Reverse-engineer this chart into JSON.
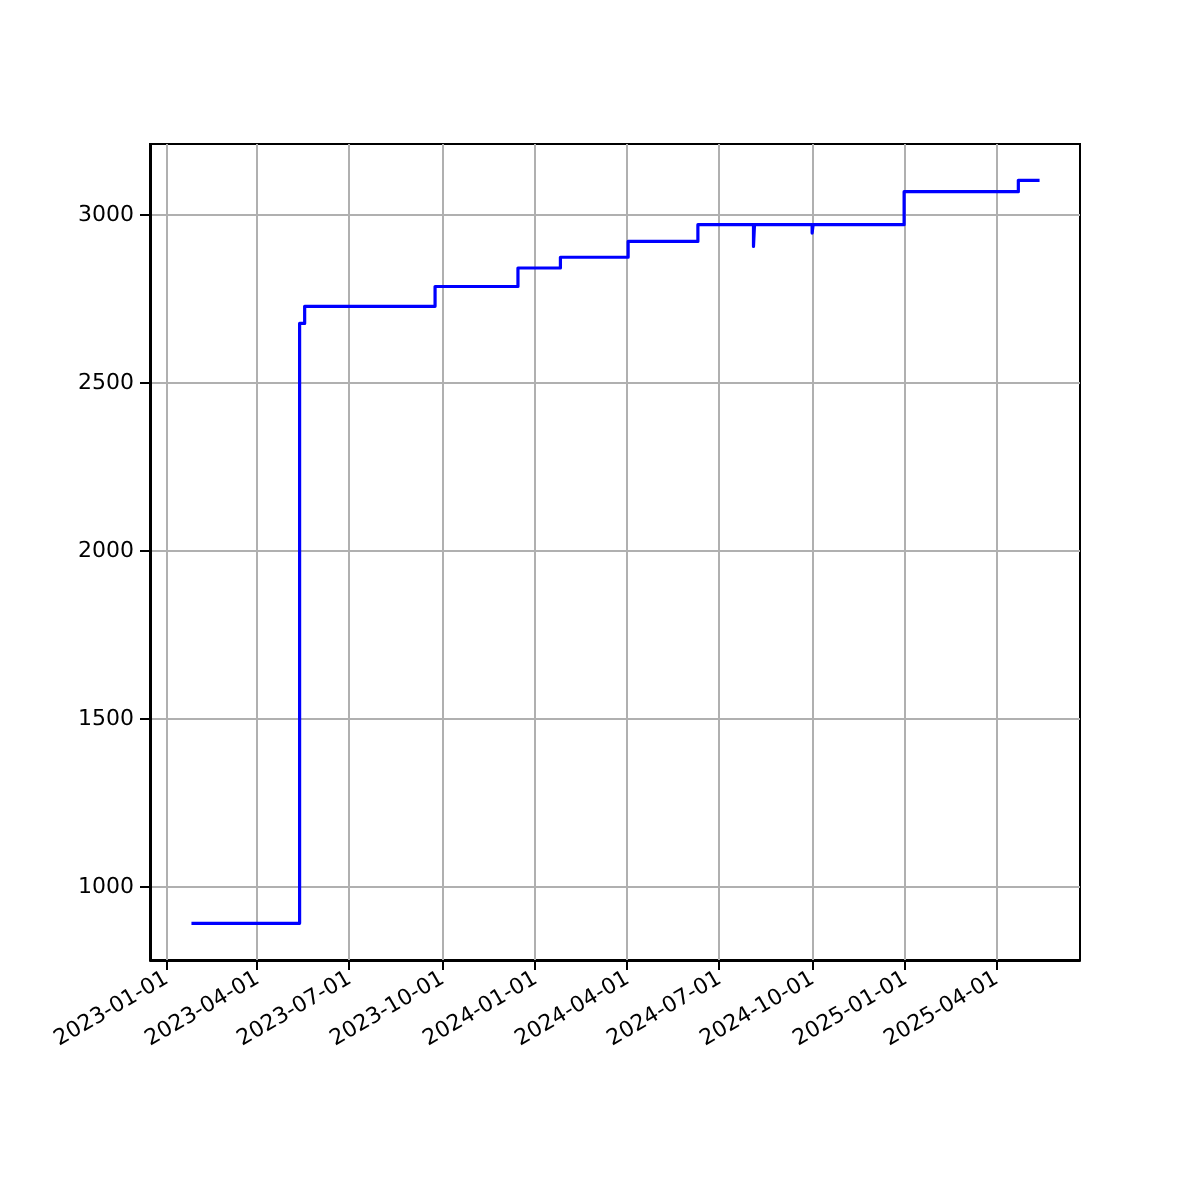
{
  "chart_data": {
    "type": "step",
    "x": [
      "2023-01-26",
      "2023-05-13",
      "2023-05-18",
      "2023-09-24",
      "2023-12-15",
      "2024-01-26",
      "2024-04-02",
      "2024-06-10",
      "2024-08-04",
      "2024-08-05",
      "2024-10-01",
      "2024-10-02",
      "2024-12-31",
      "2025-04-23",
      "2025-05-14"
    ],
    "series": [
      {
        "color": "#0000ff",
        "values": [
          889,
          2674,
          2725,
          2784,
          2839,
          2871,
          2918,
          2968,
          2903,
          2968,
          2943,
          2968,
          3066,
          3100,
          3100
        ]
      }
    ],
    "xlim": [
      "2022-12-16",
      "2025-06-23"
    ],
    "xticks": [
      "2023-01-01",
      "2023-04-01",
      "2023-07-01",
      "2023-10-01",
      "2024-01-01",
      "2024-04-01",
      "2024-07-01",
      "2024-10-01",
      "2025-01-01",
      "2025-04-01"
    ],
    "ylim": [
      780,
      3208
    ],
    "yticks": [
      1000,
      1500,
      2000,
      2500,
      3000
    ],
    "grid": true,
    "marker": "none",
    "line_style": "solid"
  }
}
